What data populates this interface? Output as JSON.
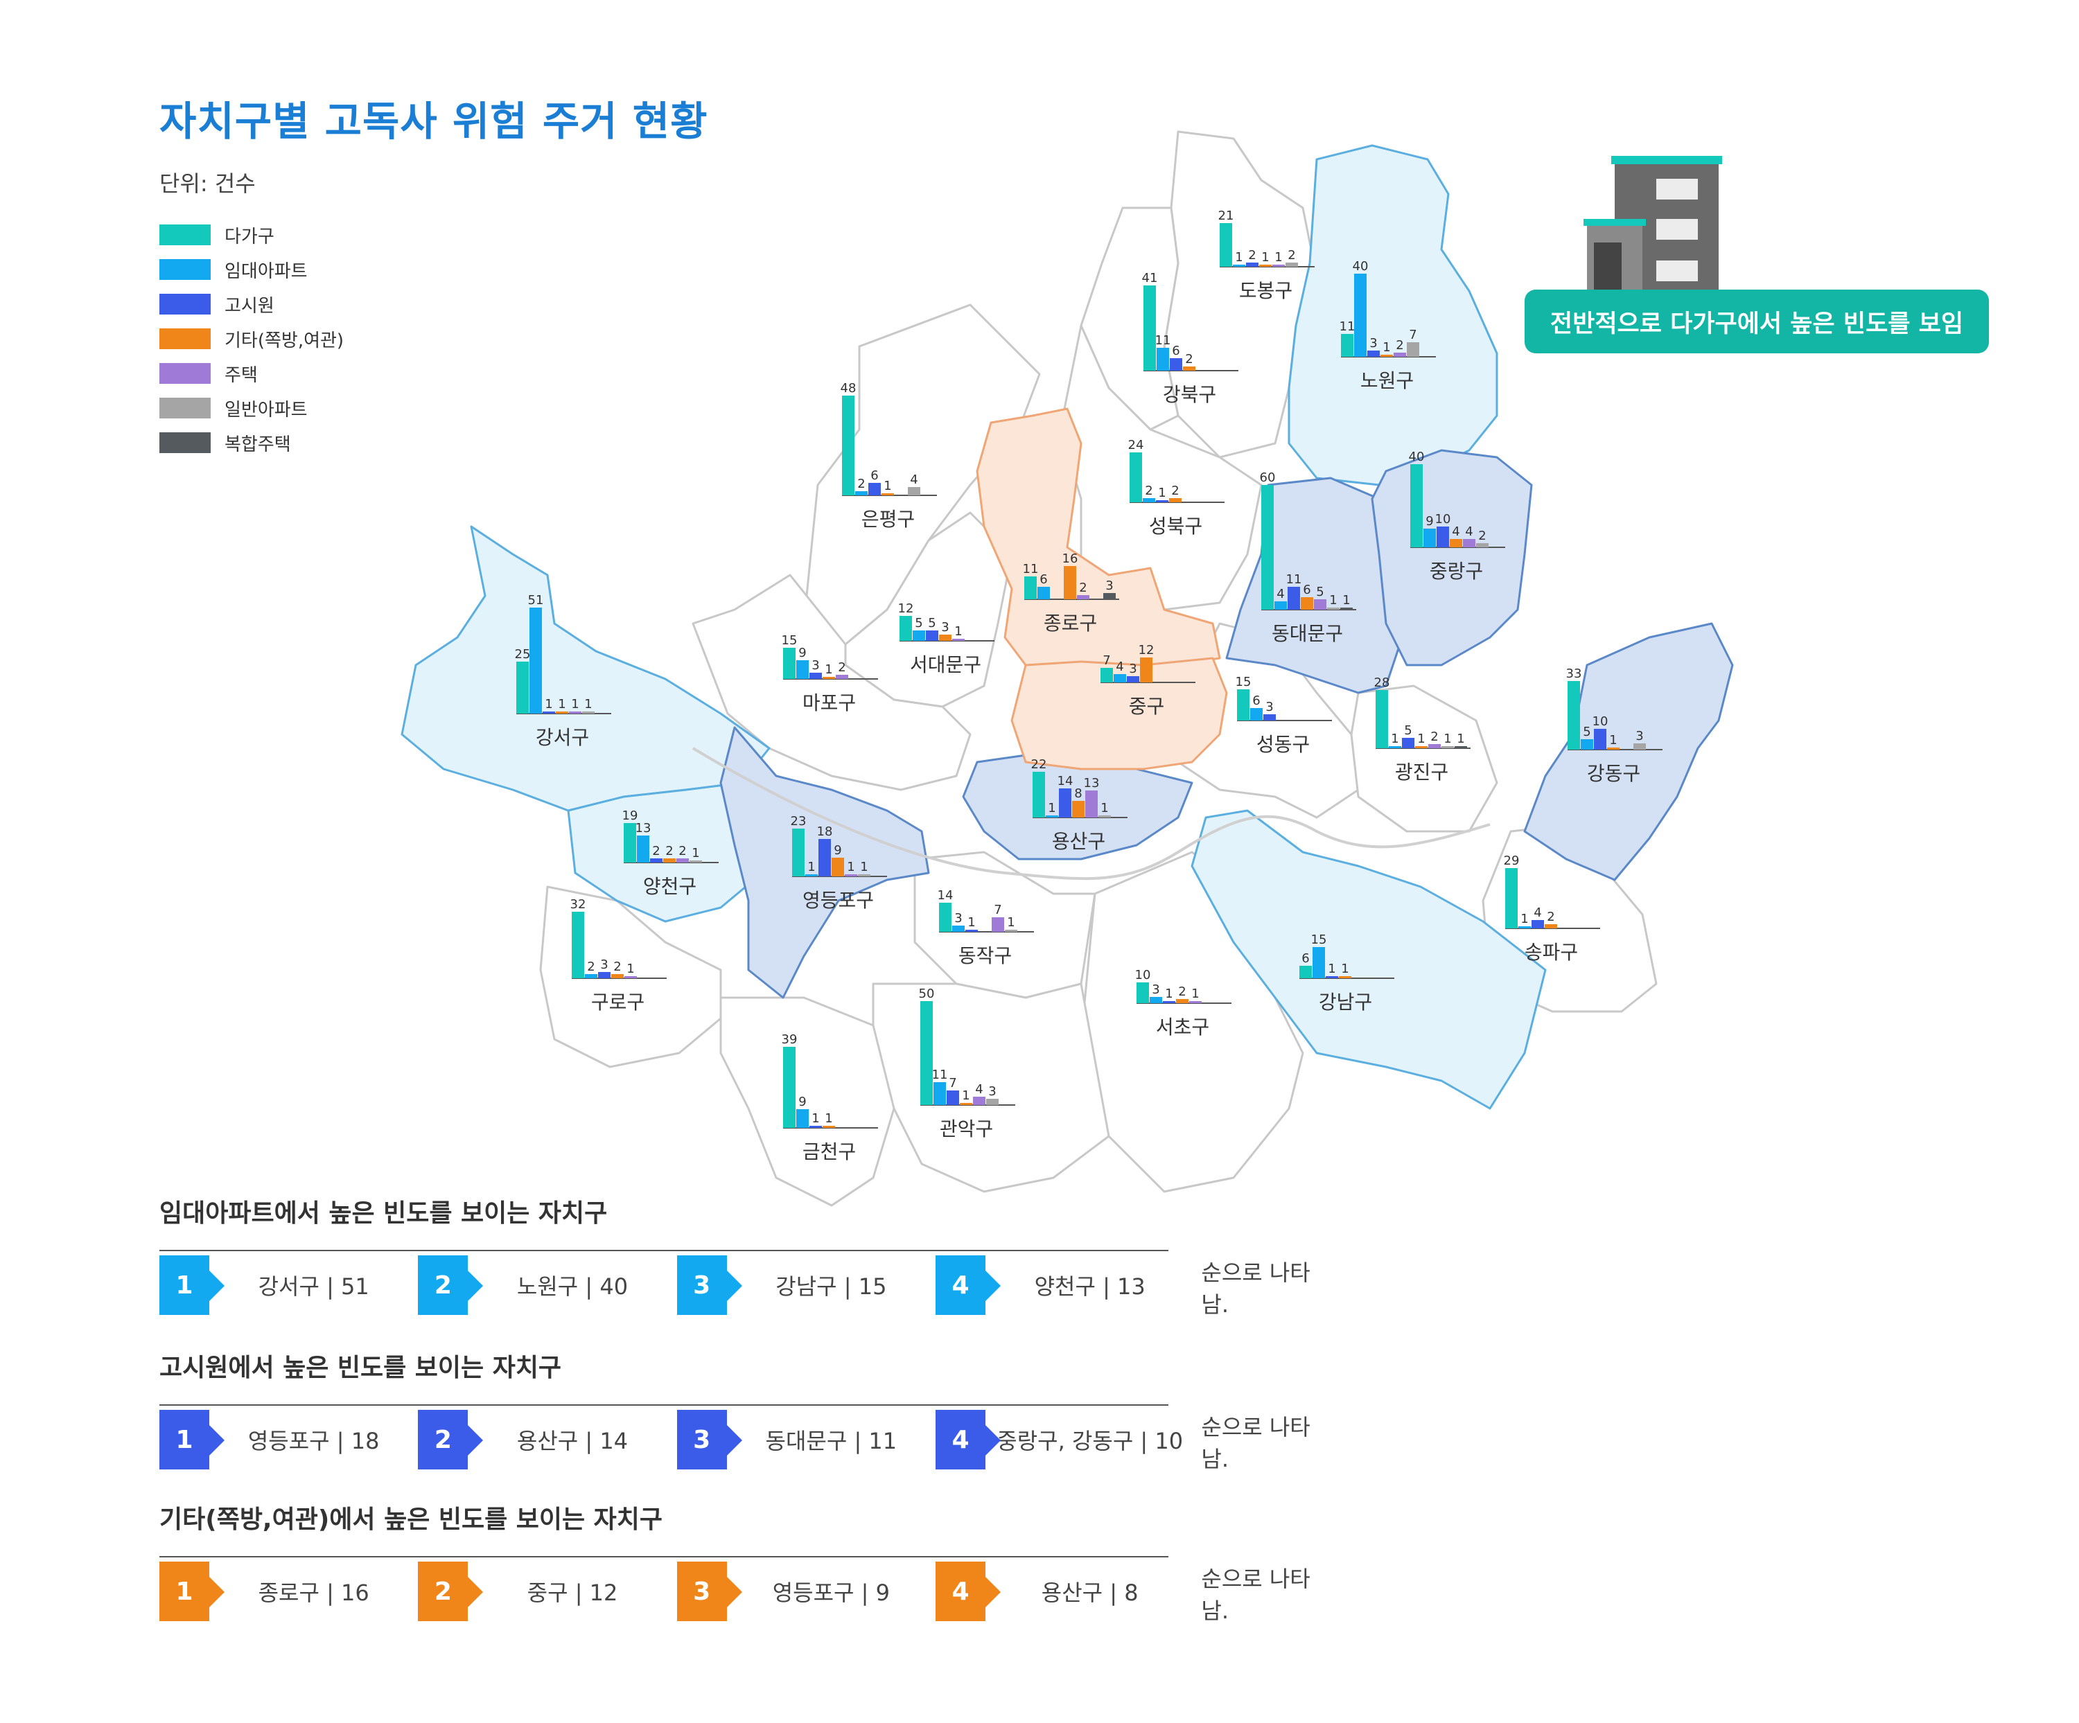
{
  "title": "자치구별 고독사 위험 주거 현황",
  "unit": "단위: 건수",
  "legend": [
    {
      "label": "다가구",
      "color": "#13c9bb"
    },
    {
      "label": "임대아파트",
      "color": "#12a9f0"
    },
    {
      "label": "고시원",
      "color": "#3b5ce8"
    },
    {
      "label": "기타(쪽방,여관)",
      "color": "#f08519"
    },
    {
      "label": "주택",
      "color": "#9f7ad6"
    },
    {
      "label": "일반아파트",
      "color": "#a5a5a5"
    },
    {
      "label": "복합주택",
      "color": "#555a5f"
    }
  ],
  "annotation": "전반적으로 다가구에서 높은 빈도를 보임",
  "chart_data": {
    "type": "bar",
    "series_names": [
      "다가구",
      "임대아파트",
      "고시원",
      "기타(쪽방,여관)",
      "주택",
      "일반아파트",
      "복합주택"
    ],
    "districts": [
      {
        "name": "도봉구",
        "values": [
          21,
          1,
          2,
          1,
          1,
          2,
          null
        ]
      },
      {
        "name": "노원구",
        "values": [
          11,
          40,
          3,
          1,
          2,
          7,
          null
        ]
      },
      {
        "name": "강북구",
        "values": [
          41,
          11,
          6,
          2,
          null,
          null,
          null
        ]
      },
      {
        "name": "은평구",
        "values": [
          48,
          2,
          6,
          1,
          null,
          4,
          null
        ]
      },
      {
        "name": "성북구",
        "values": [
          24,
          2,
          1,
          2,
          null,
          null,
          null
        ]
      },
      {
        "name": "종로구",
        "values": [
          11,
          6,
          null,
          16,
          2,
          null,
          3
        ]
      },
      {
        "name": "동대문구",
        "values": [
          60,
          4,
          11,
          6,
          5,
          1,
          1
        ]
      },
      {
        "name": "중랑구",
        "values": [
          40,
          9,
          10,
          4,
          4,
          2,
          null
        ]
      },
      {
        "name": "서대문구",
        "values": [
          12,
          5,
          5,
          3,
          1,
          null,
          null
        ]
      },
      {
        "name": "마포구",
        "values": [
          15,
          9,
          3,
          1,
          2,
          null,
          null
        ]
      },
      {
        "name": "강서구",
        "values": [
          25,
          51,
          1,
          1,
          1,
          1,
          null
        ]
      },
      {
        "name": "중구",
        "values": [
          7,
          4,
          3,
          12,
          null,
          null,
          null
        ]
      },
      {
        "name": "성동구",
        "values": [
          15,
          6,
          3,
          null,
          null,
          null,
          null
        ]
      },
      {
        "name": "광진구",
        "values": [
          28,
          1,
          5,
          1,
          2,
          1,
          1
        ]
      },
      {
        "name": "강동구",
        "values": [
          33,
          5,
          10,
          1,
          null,
          3,
          null
        ]
      },
      {
        "name": "용산구",
        "values": [
          22,
          1,
          14,
          8,
          13,
          1,
          null
        ]
      },
      {
        "name": "양천구",
        "values": [
          19,
          13,
          2,
          2,
          2,
          1,
          null
        ]
      },
      {
        "name": "영등포구",
        "values": [
          23,
          1,
          18,
          9,
          1,
          1,
          null
        ]
      },
      {
        "name": "동작구",
        "values": [
          14,
          3,
          1,
          null,
          7,
          1,
          null
        ]
      },
      {
        "name": "송파구",
        "values": [
          29,
          1,
          4,
          2,
          null,
          null,
          null
        ]
      },
      {
        "name": "구로구",
        "values": [
          32,
          2,
          3,
          2,
          1,
          null,
          null
        ]
      },
      {
        "name": "서초구",
        "values": [
          10,
          3,
          1,
          2,
          1,
          null,
          null
        ]
      },
      {
        "name": "강남구",
        "values": [
          6,
          15,
          1,
          1,
          null,
          null,
          null
        ]
      },
      {
        "name": "금천구",
        "values": [
          39,
          9,
          1,
          1,
          null,
          null,
          null
        ]
      },
      {
        "name": "관악구",
        "values": [
          50,
          11,
          7,
          1,
          4,
          3,
          null
        ]
      }
    ]
  },
  "rankings": [
    {
      "title": "임대아파트에서 높은 빈도를 보이는 자치구",
      "color": "#12a9f0",
      "items": [
        {
          "rank": "1",
          "label": "강서구 | 51"
        },
        {
          "rank": "2",
          "label": "노원구 | 40"
        },
        {
          "rank": "3",
          "label": "강남구 | 15"
        },
        {
          "rank": "4",
          "label": "양천구 | 13"
        }
      ],
      "tail": "순으로 나타남."
    },
    {
      "title": "고시원에서 높은 빈도를 보이는 자치구",
      "color": "#3b5ce8",
      "items": [
        {
          "rank": "1",
          "label": "영등포구 | 18"
        },
        {
          "rank": "2",
          "label": "용산구 | 14"
        },
        {
          "rank": "3",
          "label": "동대문구 | 11"
        },
        {
          "rank": "4",
          "label": "중랑구, 강동구 | 10"
        }
      ],
      "tail": "순으로 나타남."
    },
    {
      "title": "기타(쪽방,여관)에서 높은 빈도를 보이는 자치구",
      "color": "#f08519",
      "items": [
        {
          "rank": "1",
          "label": "종로구 | 16"
        },
        {
          "rank": "2",
          "label": "중구 | 12"
        },
        {
          "rank": "3",
          "label": "영등포구 | 9"
        },
        {
          "rank": "4",
          "label": "용산구 | 8"
        }
      ],
      "tail": "순으로 나타남."
    }
  ]
}
